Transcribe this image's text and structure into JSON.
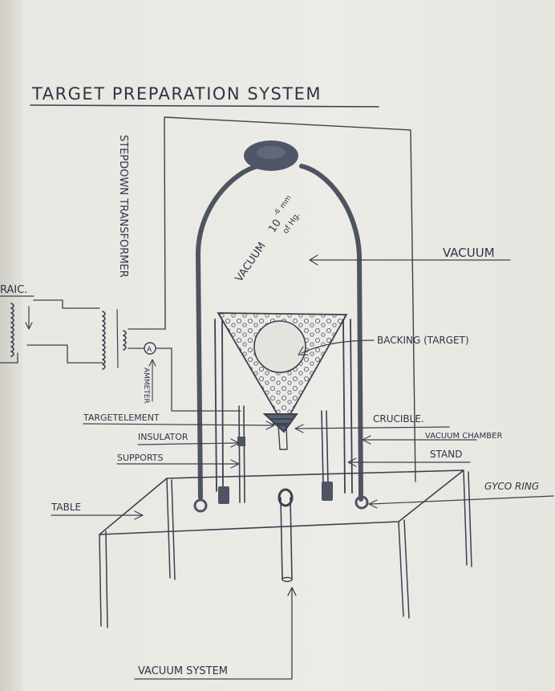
{
  "title": "TARGET PREPARATION SYSTEM",
  "labels": {
    "transformer": "STEPDOWN TRANSFORMER",
    "variac": "RAIC.",
    "vacuum_pressure_a": "VACUUM",
    "vacuum_pressure_b": "10",
    "vacuum_pressure_exp": "-6",
    "vacuum_pressure_unit": "mm",
    "vacuum_pressure_hg": "of Hg.",
    "vacuum": "VACUUM",
    "backing": "BACKING (TARGET)",
    "ammeter": "AMMETER",
    "ammeter_symbol": "A",
    "target_element": "TARGETELEMENT",
    "insulator": "INSULATOR",
    "supports": "SUPPORTS",
    "crucible": "CRUCIBLE.",
    "vacuum_chamber": "VACUUM CHAMBER",
    "stand": "STAND",
    "gyco_ring": "GYCO RING",
    "table": "TABLE",
    "vacuum_system": "VACUUM SYSTEM"
  },
  "colors": {
    "ink": "#3a4150",
    "dark": "#4e5462",
    "paper": "#ecebe6"
  }
}
